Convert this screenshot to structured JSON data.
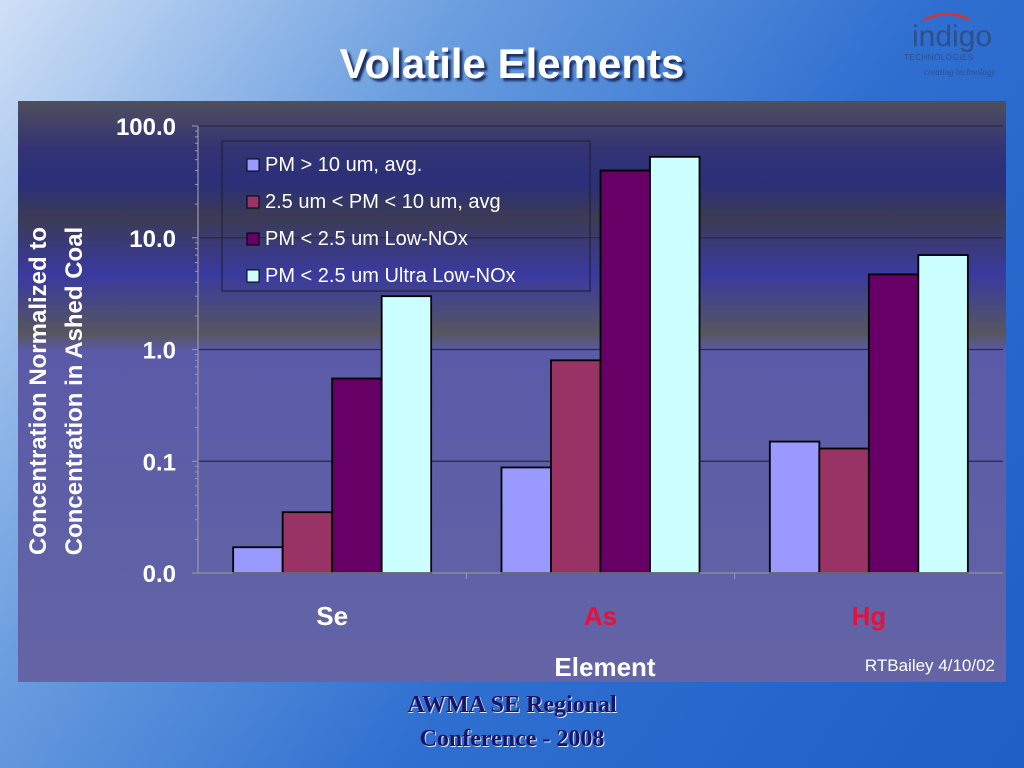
{
  "slide": {
    "title": "Volatile Elements",
    "footer_line1": "AWMA SE Regional",
    "footer_line2": "Conference - 2008"
  },
  "logo": {
    "word": "indigo",
    "sub": "TECHNOLOGIES",
    "tagline": "creating technology",
    "color": "#2e4e8c",
    "arc_color": "#d9342b"
  },
  "chart_data": {
    "type": "bar",
    "y_scale": "log",
    "ylim": [
      0.01,
      100
    ],
    "yticks": [
      {
        "value": 100,
        "label": "100.0"
      },
      {
        "value": 10,
        "label": "10.0"
      },
      {
        "value": 1,
        "label": "1.0"
      },
      {
        "value": 0.1,
        "label": "0.1"
      },
      {
        "value": 0.01,
        "label": "0.0"
      }
    ],
    "grid": true,
    "ylabel_line1": "Concentration Normalized to",
    "ylabel_line2": "Concentration in Ashed Coal",
    "xlabel": "Element",
    "categories": [
      {
        "label": "Se",
        "color": "#ffffff"
      },
      {
        "label": "As",
        "color": "#e8103a"
      },
      {
        "label": "Hg",
        "color": "#e8103a"
      }
    ],
    "series": [
      {
        "name": "PM > 10 um, avg.",
        "color": "#9999ff",
        "values": [
          0.017,
          0.088,
          0.15
        ]
      },
      {
        "name": "2.5 um < PM < 10 um, avg",
        "color": "#993366",
        "values": [
          0.035,
          0.8,
          0.13
        ]
      },
      {
        "name": "PM < 2.5 um Low-NOx",
        "color": "#660066",
        "values": [
          0.55,
          40,
          4.7
        ]
      },
      {
        "name": "PM < 2.5 um Ultra Low-NOx",
        "color": "#ccffff",
        "values": [
          3.0,
          53,
          7.0
        ]
      }
    ],
    "legend_position": "top-left",
    "annotation": "RTBailey 4/10/02"
  }
}
